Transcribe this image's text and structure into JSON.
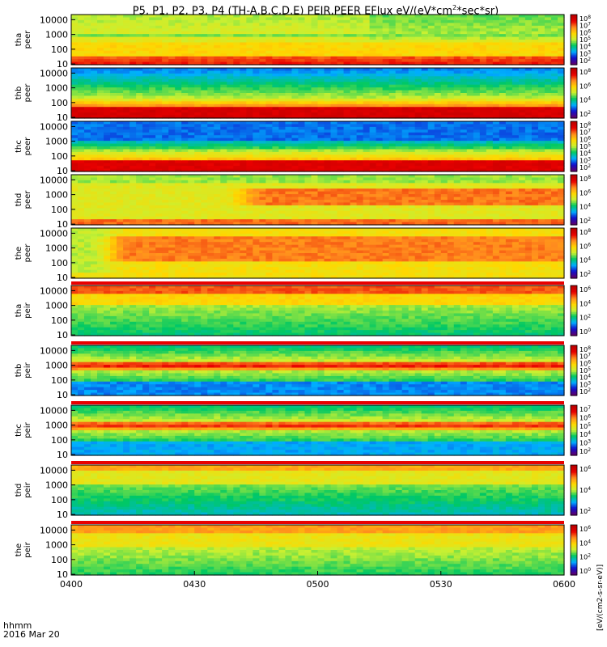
{
  "title_parts": {
    "pre": "P5, P1, P2, P3, P4 (TH-A,B,C,D,E) PEIR,PEER EFlux eV/(eV*cm",
    "exp": "2",
    "post": "*sec*sr)"
  },
  "footer": {
    "time_label": "hhmm",
    "date_label": "2016 Mar 20"
  },
  "chart_data": {
    "type": "heatmap",
    "x_ticks": [
      "0400",
      "0430",
      "0500",
      "0530",
      "0600"
    ],
    "x_range_minutes": [
      0,
      120
    ],
    "y_scale": "log",
    "y_ticks": [
      "10",
      "100",
      "1000",
      "10000"
    ],
    "colorbar_label": "[eV/(cm2-s-sr-eV)]",
    "colors": [
      "#5a0070",
      "#1010d0",
      "#00b0ff",
      "#00c864",
      "#c8f032",
      "#ffd700",
      "#ff8c1e",
      "#e80000",
      "#b80000"
    ],
    "panels": [
      {
        "label": "tha peer",
        "cb_ticks": [
          "10^8",
          "10^7",
          "10^6",
          "10^5",
          "10^4",
          "10^3",
          "10^2"
        ],
        "profile": "peer_a"
      },
      {
        "label": "thb peer",
        "cb_ticks": [
          "10^8",
          "10^6",
          "10^4",
          "10^2"
        ],
        "profile": "peer_b"
      },
      {
        "label": "thc peer",
        "cb_ticks": [
          "10^8",
          "10^7",
          "10^6",
          "10^5",
          "10^4",
          "10^3",
          "10^2"
        ],
        "profile": "peer_c"
      },
      {
        "label": "thd peer",
        "cb_ticks": [
          "10^8",
          "10^6",
          "10^4",
          "10^2"
        ],
        "profile": "peer_d"
      },
      {
        "label": "the peer",
        "cb_ticks": [
          "10^8",
          "10^6",
          "10^4",
          "10^2"
        ],
        "profile": "peer_e"
      },
      {
        "label": "tha peir",
        "cb_ticks": [
          "10^6",
          "10^4",
          "10^2",
          "10^0"
        ],
        "profile": "peir_a"
      },
      {
        "label": "thb peir",
        "cb_ticks": [
          "10^8",
          "10^7",
          "10^6",
          "10^5",
          "10^4",
          "10^3",
          "10^2"
        ],
        "profile": "peir_b"
      },
      {
        "label": "thc peir",
        "cb_ticks": [
          "10^7",
          "10^6",
          "10^5",
          "10^4",
          "10^3",
          "10^2"
        ],
        "profile": "peir_c"
      },
      {
        "label": "thd peir",
        "cb_ticks": [
          "10^6",
          "10^4",
          "10^2"
        ],
        "profile": "peir_d"
      },
      {
        "label": "the peir",
        "cb_ticks": [
          "10^6",
          "10^4",
          "10^2",
          "10^0"
        ],
        "profile": "peir_e"
      }
    ]
  }
}
